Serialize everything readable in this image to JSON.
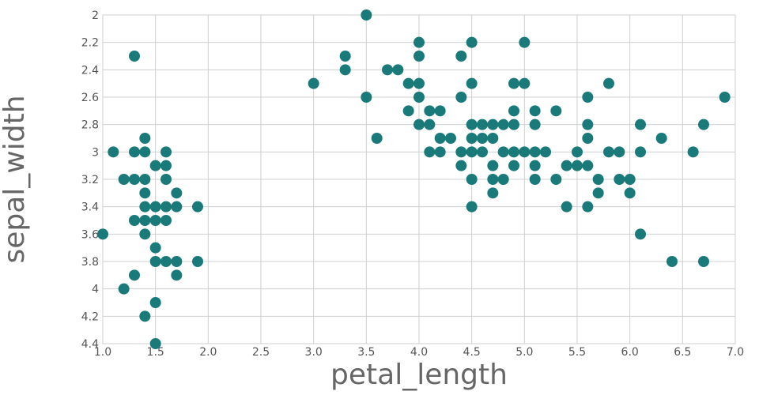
{
  "chart_data": {
    "type": "scatter",
    "title": "",
    "xlabel": "petal_length",
    "ylabel": "sepal_width",
    "xlim": [
      1.0,
      7.0
    ],
    "ylim": [
      2.0,
      4.4
    ],
    "y_reversed": true,
    "grid": true,
    "legend": "none",
    "x_ticks": [
      "1.0",
      "1.5",
      "2.0",
      "2.5",
      "3.0",
      "3.5",
      "4.0",
      "4.5",
      "5.0",
      "5.5",
      "6.0",
      "6.5",
      "7.0"
    ],
    "y_ticks": [
      "2",
      "2.2",
      "2.4",
      "2.6",
      "2.8",
      "3",
      "3.2",
      "3.4",
      "3.6",
      "3.8",
      "4",
      "4.2",
      "4.4"
    ],
    "marker_color": "#1a7a7a",
    "points": [
      [
        1.0,
        3.6
      ],
      [
        1.1,
        3.0
      ],
      [
        1.2,
        3.2
      ],
      [
        1.2,
        4.0
      ],
      [
        1.3,
        2.3
      ],
      [
        1.3,
        3.0
      ],
      [
        1.3,
        3.2
      ],
      [
        1.3,
        3.5
      ],
      [
        1.3,
        3.9
      ],
      [
        1.4,
        2.9
      ],
      [
        1.4,
        3.0
      ],
      [
        1.4,
        3.2
      ],
      [
        1.4,
        3.3
      ],
      [
        1.4,
        3.4
      ],
      [
        1.4,
        3.5
      ],
      [
        1.4,
        3.6
      ],
      [
        1.4,
        4.2
      ],
      [
        1.5,
        3.1
      ],
      [
        1.5,
        3.4
      ],
      [
        1.5,
        3.5
      ],
      [
        1.5,
        3.7
      ],
      [
        1.5,
        3.8
      ],
      [
        1.5,
        4.1
      ],
      [
        1.5,
        4.4
      ],
      [
        1.6,
        3.0
      ],
      [
        1.6,
        3.1
      ],
      [
        1.6,
        3.2
      ],
      [
        1.6,
        3.4
      ],
      [
        1.6,
        3.5
      ],
      [
        1.6,
        3.8
      ],
      [
        1.7,
        3.3
      ],
      [
        1.7,
        3.4
      ],
      [
        1.7,
        3.8
      ],
      [
        1.7,
        3.9
      ],
      [
        1.9,
        3.4
      ],
      [
        1.9,
        3.8
      ],
      [
        3.0,
        2.5
      ],
      [
        3.3,
        2.3
      ],
      [
        3.3,
        2.4
      ],
      [
        3.5,
        2.0
      ],
      [
        3.5,
        2.6
      ],
      [
        3.6,
        2.9
      ],
      [
        3.7,
        2.4
      ],
      [
        3.8,
        2.4
      ],
      [
        3.9,
        2.5
      ],
      [
        3.9,
        2.7
      ],
      [
        4.0,
        2.2
      ],
      [
        4.0,
        2.3
      ],
      [
        4.0,
        2.5
      ],
      [
        4.0,
        2.6
      ],
      [
        4.0,
        2.8
      ],
      [
        4.1,
        2.7
      ],
      [
        4.1,
        2.8
      ],
      [
        4.1,
        3.0
      ],
      [
        4.2,
        2.7
      ],
      [
        4.2,
        2.9
      ],
      [
        4.2,
        3.0
      ],
      [
        4.3,
        2.9
      ],
      [
        4.4,
        2.3
      ],
      [
        4.4,
        2.6
      ],
      [
        4.4,
        3.0
      ],
      [
        4.4,
        3.1
      ],
      [
        4.5,
        2.2
      ],
      [
        4.5,
        2.5
      ],
      [
        4.5,
        2.8
      ],
      [
        4.5,
        2.9
      ],
      [
        4.5,
        3.0
      ],
      [
        4.5,
        3.2
      ],
      [
        4.5,
        3.4
      ],
      [
        4.6,
        2.8
      ],
      [
        4.6,
        2.9
      ],
      [
        4.6,
        3.0
      ],
      [
        4.7,
        2.8
      ],
      [
        4.7,
        2.9
      ],
      [
        4.7,
        3.1
      ],
      [
        4.7,
        3.2
      ],
      [
        4.7,
        3.3
      ],
      [
        4.8,
        2.8
      ],
      [
        4.8,
        3.0
      ],
      [
        4.8,
        3.2
      ],
      [
        4.9,
        2.5
      ],
      [
        4.9,
        2.7
      ],
      [
        4.9,
        2.8
      ],
      [
        4.9,
        3.0
      ],
      [
        4.9,
        3.1
      ],
      [
        5.0,
        2.2
      ],
      [
        5.0,
        2.5
      ],
      [
        5.0,
        3.0
      ],
      [
        5.1,
        2.7
      ],
      [
        5.1,
        2.8
      ],
      [
        5.1,
        3.0
      ],
      [
        5.1,
        3.1
      ],
      [
        5.1,
        3.2
      ],
      [
        5.2,
        3.0
      ],
      [
        5.3,
        2.7
      ],
      [
        5.3,
        3.2
      ],
      [
        5.4,
        3.1
      ],
      [
        5.4,
        3.4
      ],
      [
        5.5,
        3.0
      ],
      [
        5.5,
        3.1
      ],
      [
        5.6,
        2.6
      ],
      [
        5.6,
        2.8
      ],
      [
        5.6,
        2.9
      ],
      [
        5.6,
        3.1
      ],
      [
        5.6,
        3.4
      ],
      [
        5.7,
        3.2
      ],
      [
        5.7,
        3.3
      ],
      [
        5.8,
        2.5
      ],
      [
        5.8,
        3.0
      ],
      [
        5.9,
        3.0
      ],
      [
        5.9,
        3.2
      ],
      [
        6.0,
        3.2
      ],
      [
        6.0,
        3.3
      ],
      [
        6.1,
        2.8
      ],
      [
        6.1,
        3.0
      ],
      [
        6.1,
        3.6
      ],
      [
        6.3,
        2.9
      ],
      [
        6.4,
        3.8
      ],
      [
        6.6,
        3.0
      ],
      [
        6.7,
        2.8
      ],
      [
        6.7,
        3.8
      ],
      [
        6.9,
        2.6
      ]
    ]
  }
}
